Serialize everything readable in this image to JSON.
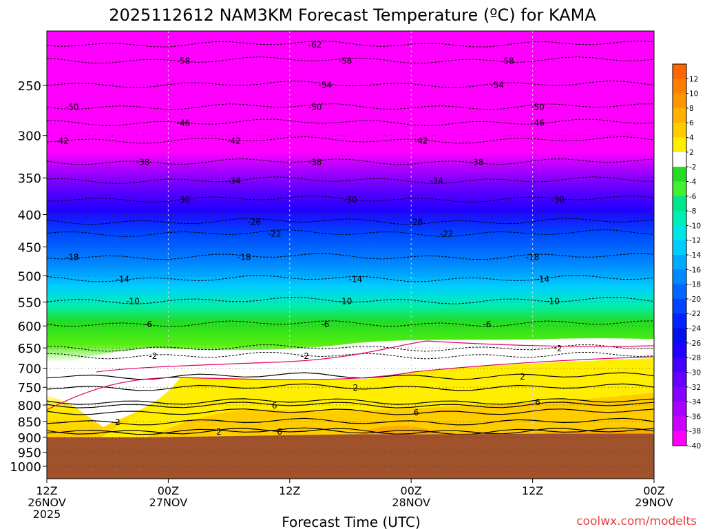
{
  "chart_data": {
    "type": "heatmap",
    "title": "2025112612 NAM3KM Forecast Temperature (ºC) for KAMA",
    "xlabel": "Forecast Time (UTC)",
    "ylabel": "",
    "watermark": "coolwx.com/modelts",
    "y_scale": "log-pressure",
    "y_reversed": true,
    "ylim": [
      1050,
      200
    ],
    "xlim_hours": [
      0,
      60
    ],
    "x_ticks": [
      {
        "hour": 0,
        "lines": [
          "12Z",
          "26NOV",
          "2025"
        ]
      },
      {
        "hour": 12,
        "lines": [
          "00Z",
          "27NOV"
        ]
      },
      {
        "hour": 24,
        "lines": [
          "12Z"
        ]
      },
      {
        "hour": 36,
        "lines": [
          "00Z",
          "28NOV"
        ]
      },
      {
        "hour": 48,
        "lines": [
          "12Z"
        ]
      },
      {
        "hour": 60,
        "lines": [
          "00Z",
          "29NOV"
        ]
      }
    ],
    "y_ticks": [
      "250",
      "300",
      "350",
      "400",
      "450",
      "500",
      "550",
      "600",
      "650",
      "700",
      "750",
      "800",
      "850",
      "900",
      "950",
      "1000"
    ],
    "y_tick_values": [
      250,
      300,
      350,
      400,
      450,
      500,
      550,
      600,
      650,
      700,
      750,
      800,
      850,
      900,
      950,
      1000
    ],
    "grid": true,
    "legend": "right",
    "colorbar": {
      "labels": [
        "12",
        "10",
        "8",
        "6",
        "4",
        "2",
        "-2",
        "-4",
        "-6",
        "-8",
        "-10",
        "-12",
        "-14",
        "-16",
        "-18",
        "-20",
        "-22",
        "-24",
        "-26",
        "-28",
        "-30",
        "-32",
        "-34",
        "-36",
        "-38",
        "-40"
      ],
      "colors": [
        "#ff6600",
        "#ff7d00",
        "#ff9600",
        "#ffb000",
        "#ffcc00",
        "#ffee00",
        "#ffffff",
        "#22dd22",
        "#44ee33",
        "#00e68a",
        "#00eeb8",
        "#00e6e6",
        "#00ccff",
        "#00aaff",
        "#0088ff",
        "#0066ff",
        "#0044ff",
        "#0022ff",
        "#0011ee",
        "#2200ff",
        "#4400ff",
        "#6600ff",
        "#8800ff",
        "#aa00ff",
        "#cc00ff",
        "#ff00ff"
      ]
    },
    "ground": {
      "color": "#a0522d",
      "pressure_top": [
        900,
        900,
        895,
        890,
        890,
        888,
        888
      ]
    },
    "contours": [
      {
        "value": -62,
        "pressure": 215,
        "label_hour": 26.5
      },
      {
        "value": -58,
        "pressure": 228,
        "label_hour": 13.5
      },
      {
        "value": -58,
        "pressure": 228,
        "label_hour": 29.5
      },
      {
        "value": -58,
        "pressure": 228,
        "label_hour": 45.5
      },
      {
        "value": -54,
        "pressure": 249,
        "label_hour": 27.5
      },
      {
        "value": -54,
        "pressure": 249,
        "label_hour": 44.5
      },
      {
        "value": -50,
        "pressure": 270,
        "label_hour": 2.5
      },
      {
        "value": -50,
        "pressure": 270,
        "label_hour": 26.5
      },
      {
        "value": -50,
        "pressure": 270,
        "label_hour": 48.5
      },
      {
        "value": -46,
        "pressure": 286,
        "label_hour": 13.5
      },
      {
        "value": -46,
        "pressure": 286,
        "label_hour": 48.5
      },
      {
        "value": -42,
        "pressure": 305,
        "label_hour": 1.5
      },
      {
        "value": -42,
        "pressure": 305,
        "label_hour": 18.5
      },
      {
        "value": -42,
        "pressure": 305,
        "label_hour": 37.0
      },
      {
        "value": -38,
        "pressure": 330,
        "label_hour": 9.5
      },
      {
        "value": -38,
        "pressure": 330,
        "label_hour": 26.5
      },
      {
        "value": -38,
        "pressure": 330,
        "label_hour": 42.5
      },
      {
        "value": -34,
        "pressure": 353,
        "label_hour": 18.5
      },
      {
        "value": -34,
        "pressure": 353,
        "label_hour": 38.5
      },
      {
        "value": -30,
        "pressure": 378,
        "label_hour": 13.5
      },
      {
        "value": -30,
        "pressure": 378,
        "label_hour": 30.0
      },
      {
        "value": -30,
        "pressure": 378,
        "label_hour": 50.5
      },
      {
        "value": -26,
        "pressure": 410,
        "label_hour": 20.5
      },
      {
        "value": -26,
        "pressure": 410,
        "label_hour": 36.5
      },
      {
        "value": -22,
        "pressure": 428,
        "label_hour": 22.5
      },
      {
        "value": -22,
        "pressure": 428,
        "label_hour": 39.5
      },
      {
        "value": -18,
        "pressure": 466,
        "label_hour": 2.5
      },
      {
        "value": -18,
        "pressure": 466,
        "label_hour": 19.5
      },
      {
        "value": -18,
        "pressure": 466,
        "label_hour": 48.0
      },
      {
        "value": -14,
        "pressure": 505,
        "label_hour": 7.5
      },
      {
        "value": -14,
        "pressure": 505,
        "label_hour": 30.5
      },
      {
        "value": -14,
        "pressure": 505,
        "label_hour": 49.0
      },
      {
        "value": -10,
        "pressure": 547,
        "label_hour": 8.5
      },
      {
        "value": -10,
        "pressure": 547,
        "label_hour": 29.5
      },
      {
        "value": -10,
        "pressure": 547,
        "label_hour": 50.0
      },
      {
        "value": -6,
        "pressure": 595,
        "label_hour": 10.0
      },
      {
        "value": -6,
        "pressure": 595,
        "label_hour": 27.5
      },
      {
        "value": -6,
        "pressure": 595,
        "label_hour": 43.5
      },
      {
        "value": -2,
        "pressure": 668,
        "label_hour": 10.5
      },
      {
        "value": -2,
        "pressure": 668,
        "label_hour": 25.5
      },
      {
        "value": -2,
        "pressure": 650,
        "label_hour": 50.5
      },
      {
        "value": 2,
        "pressure": 750,
        "label_hour": 30.5
      },
      {
        "value": 2,
        "pressure": 720,
        "label_hour": 47.0
      },
      {
        "value": 2,
        "pressure": 850,
        "label_hour": 7.0
      },
      {
        "value": 2,
        "pressure": 880,
        "label_hour": 17.0
      },
      {
        "value": 6,
        "pressure": 800,
        "label_hour": 22.5
      },
      {
        "value": 6,
        "pressure": 820,
        "label_hour": 36.5
      },
      {
        "value": 6,
        "pressure": 790,
        "label_hour": 48.5
      },
      {
        "value": 6,
        "pressure": 880,
        "label_hour": 23.0
      }
    ]
  }
}
